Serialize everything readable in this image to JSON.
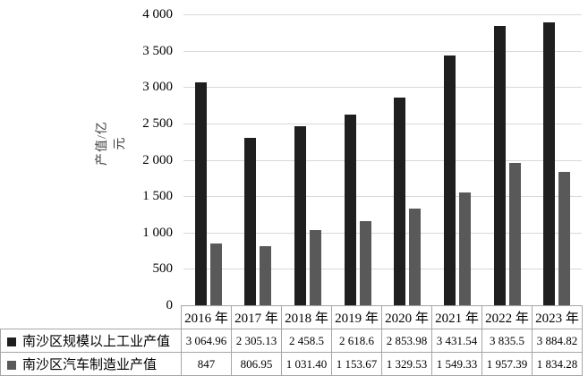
{
  "chart_data": {
    "type": "bar",
    "title": "",
    "xlabel": "",
    "ylabel": "产值/亿元",
    "ylim": [
      0,
      4000
    ],
    "ytick_step": 500,
    "ytick_labels": [
      "4 000",
      "3 500",
      "3 000",
      "2 500",
      "2 000",
      "1 500",
      "1 000",
      "500",
      "0"
    ],
    "grid": true,
    "legend_position": "table-left",
    "categories": [
      "2016 年",
      "2017 年",
      "2018 年",
      "2019 年",
      "2020 年",
      "2021 年",
      "2022 年",
      "2023 年"
    ],
    "series": [
      {
        "name": "南沙区规模以上工业产值",
        "color": "#1f1f1f",
        "values": [
          3064.96,
          2305.13,
          2458.5,
          2618.6,
          2853.98,
          3431.54,
          3835.5,
          3884.82
        ],
        "value_labels": [
          "3 064.96",
          "2 305.13",
          "2 458.5",
          "2 618.6",
          "2 853.98",
          "3 431.54",
          "3 835.5",
          "3 884.82"
        ]
      },
      {
        "name": "南沙区汽车制造业产值",
        "color": "#595959",
        "values": [
          847,
          806.95,
          1031.4,
          1153.67,
          1329.53,
          1549.33,
          1957.39,
          1834.28
        ],
        "value_labels": [
          "847",
          "806.95",
          "1 031.40",
          "1 153.67",
          "1 329.53",
          "1 549.33",
          "1 957.39",
          "1 834.28"
        ]
      }
    ]
  },
  "colors": {
    "gridline": "#d9d9d9",
    "table_border": "#a6a6a6",
    "axis_label": "#3f3f3f"
  }
}
